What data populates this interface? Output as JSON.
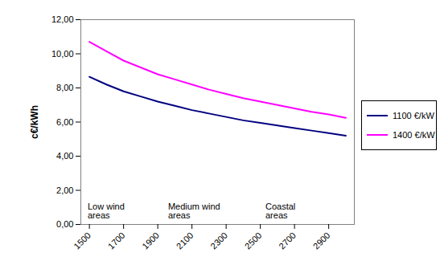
{
  "chart_data": {
    "type": "line",
    "y_label": "c€/kWh",
    "x": [
      1500,
      1600,
      1700,
      1800,
      1900,
      2000,
      2100,
      2200,
      2300,
      2400,
      2500,
      2600,
      2700,
      2800,
      2900,
      3000
    ],
    "series": [
      {
        "name": "1100 €/kW",
        "color": "#000080",
        "values": [
          8.65,
          8.2,
          7.8,
          7.5,
          7.2,
          6.95,
          6.7,
          6.5,
          6.3,
          6.1,
          5.95,
          5.8,
          5.65,
          5.5,
          5.35,
          5.2
        ]
      },
      {
        "name": "1400 €/kW",
        "color": "#ff00ff",
        "values": [
          10.7,
          10.15,
          9.6,
          9.2,
          8.8,
          8.5,
          8.2,
          7.9,
          7.65,
          7.4,
          7.2,
          7.0,
          6.8,
          6.6,
          6.45,
          6.25
        ]
      }
    ],
    "xlim": [
      1450,
      3050
    ],
    "xticks": [
      1500,
      1700,
      1900,
      2100,
      2300,
      2500,
      2700,
      2900
    ],
    "ylim": [
      0,
      12
    ],
    "yticks": [
      {
        "value": 0,
        "label": "0,00"
      },
      {
        "value": 2,
        "label": "2,00"
      },
      {
        "value": 4,
        "label": "4,00"
      },
      {
        "value": 6,
        "label": "6,00"
      },
      {
        "value": 8,
        "label": "8,00"
      },
      {
        "value": 10,
        "label": "10,00"
      },
      {
        "value": 12,
        "label": "12,00"
      }
    ],
    "annotations": [
      {
        "x": 1490,
        "y": 0.8,
        "text": "Low wind\nareas"
      },
      {
        "x": 1960,
        "y": 0.8,
        "text": "Medium wind\nareas"
      },
      {
        "x": 2530,
        "y": 0.8,
        "text": "Coastal\nareas"
      }
    ],
    "legend": "right",
    "grid": false
  }
}
